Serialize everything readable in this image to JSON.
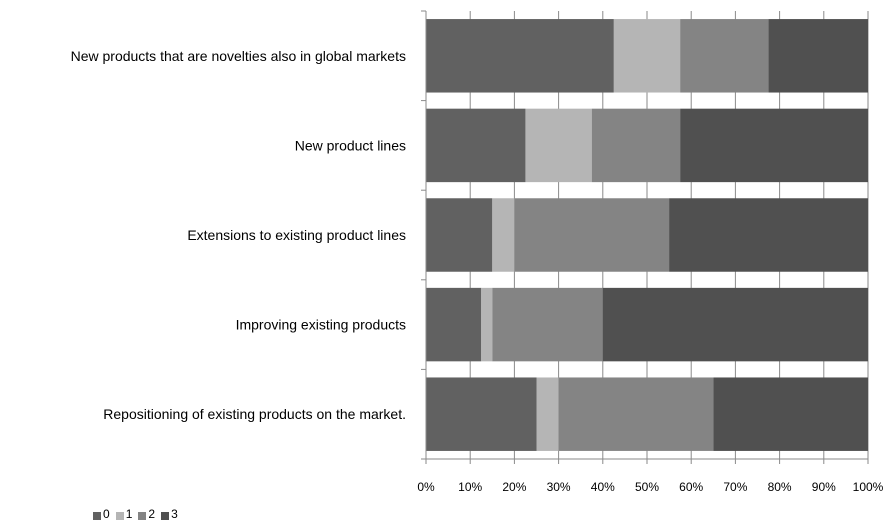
{
  "chart_data": {
    "type": "bar",
    "orientation": "horizontal",
    "stacked": "percent",
    "categories": [
      "New products that are novelties also in global markets",
      "New product lines",
      "Extensions to existing product lines",
      "Improving existing products",
      "Repositioning of existing products on the market."
    ],
    "series": [
      {
        "name": "0",
        "color": "#616161",
        "values": [
          42.5,
          22.5,
          15,
          12.5,
          25
        ]
      },
      {
        "name": "1",
        "color": "#b5b5b5",
        "values": [
          15,
          15,
          5,
          2.5,
          5
        ]
      },
      {
        "name": "2",
        "color": "#848484",
        "values": [
          20,
          20,
          35,
          25,
          35
        ]
      },
      {
        "name": "3",
        "color": "#505050",
        "values": [
          22.5,
          42.5,
          45,
          60,
          35
        ]
      }
    ],
    "xlim": [
      0,
      100
    ],
    "x_ticks": [
      "0%",
      "10%",
      "20%",
      "30%",
      "40%",
      "50%",
      "60%",
      "70%",
      "80%",
      "90%",
      "100%"
    ],
    "grid": "vertical",
    "legend_position": "bottom-left"
  }
}
